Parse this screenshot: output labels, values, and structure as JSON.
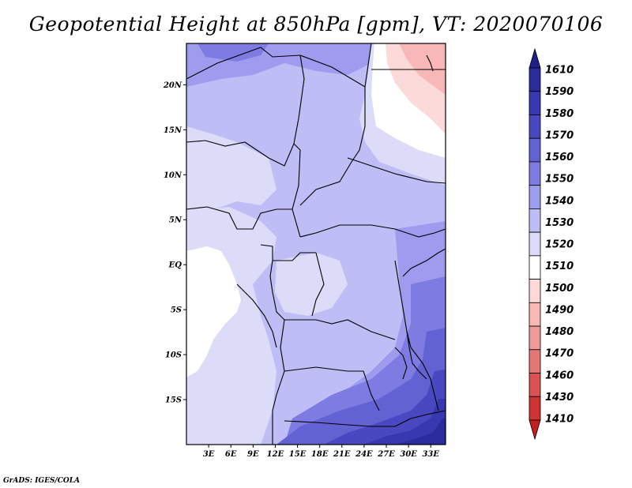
{
  "title": "Geopotential Height at 850hPa [gpm], VT: 2020070106",
  "credit": "GrADS: IGES/COLA",
  "map": {
    "lon_range": [
      0,
      35
    ],
    "lat_range": [
      -20,
      24.6
    ],
    "lat_ticks": [
      {
        "value": 20,
        "label": "20N"
      },
      {
        "value": 15,
        "label": "15N"
      },
      {
        "value": 10,
        "label": "10N"
      },
      {
        "value": 5,
        "label": "5N"
      },
      {
        "value": 0,
        "label": "EQ"
      },
      {
        "value": -5,
        "label": "5S"
      },
      {
        "value": -10,
        "label": "10S"
      },
      {
        "value": -15,
        "label": "15S"
      }
    ],
    "lon_ticks": [
      {
        "value": 3,
        "label": "3E"
      },
      {
        "value": 6,
        "label": "6E"
      },
      {
        "value": 9,
        "label": "9E"
      },
      {
        "value": 12,
        "label": "12E"
      },
      {
        "value": 15,
        "label": "15E"
      },
      {
        "value": 18,
        "label": "18E"
      },
      {
        "value": 21,
        "label": "21E"
      },
      {
        "value": 24,
        "label": "24E"
      },
      {
        "value": 27,
        "label": "27E"
      },
      {
        "value": 30,
        "label": "30E"
      },
      {
        "value": 33,
        "label": "33E"
      }
    ]
  },
  "legend": {
    "levels": [
      {
        "label": "1610",
        "color": "#1f1f8a"
      },
      {
        "label": "1590",
        "color": "#2b2b9e"
      },
      {
        "label": "1580",
        "color": "#3838b0"
      },
      {
        "label": "1570",
        "color": "#4a48c0"
      },
      {
        "label": "1560",
        "color": "#6262d2"
      },
      {
        "label": "1550",
        "color": "#7e7ce2"
      },
      {
        "label": "1540",
        "color": "#9f9cf0"
      },
      {
        "label": "1530",
        "color": "#bfbdf5"
      },
      {
        "label": "1520",
        "color": "#dcdcf8"
      },
      {
        "label": "1510",
        "color": "#ffffff"
      },
      {
        "label": "1500",
        "color": "#fddada"
      },
      {
        "label": "1490",
        "color": "#f8b8b8"
      },
      {
        "label": "1480",
        "color": "#f09a9a"
      },
      {
        "label": "1470",
        "color": "#e67777"
      },
      {
        "label": "1460",
        "color": "#dc5252"
      },
      {
        "label": "1430",
        "color": "#cf3333"
      },
      {
        "label": "1410",
        "color": "#c21f1f"
      }
    ]
  }
}
